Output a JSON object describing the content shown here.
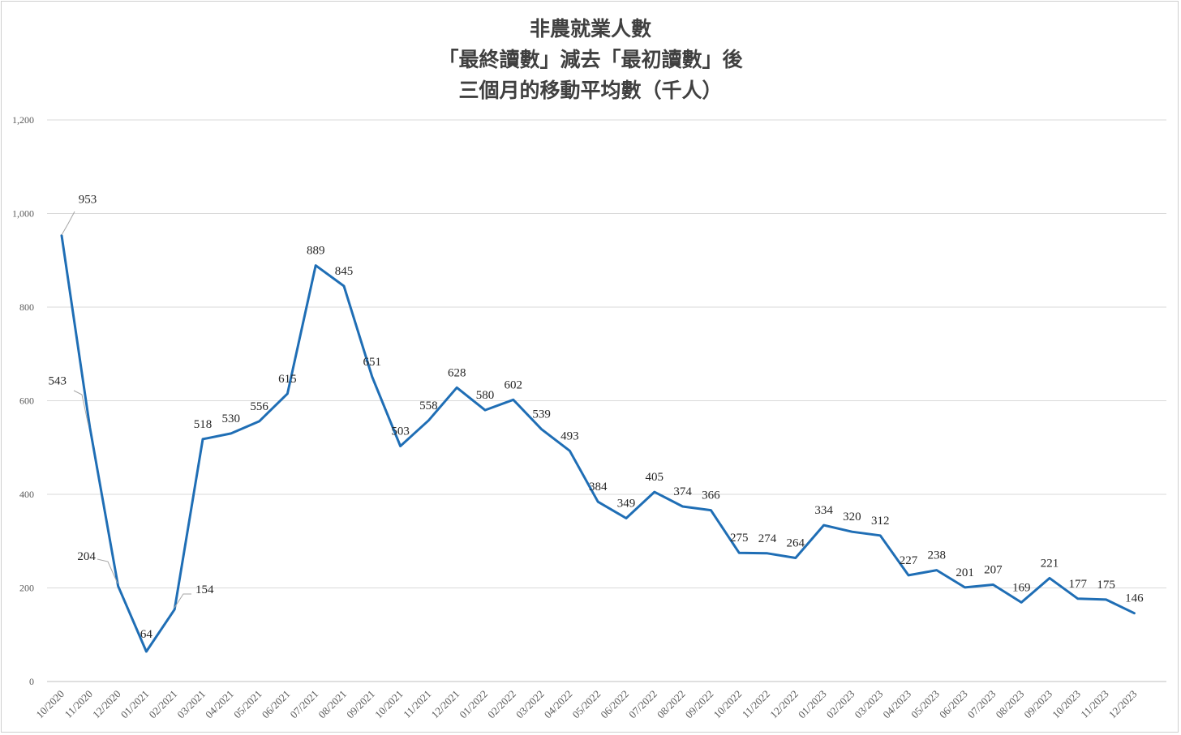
{
  "chart_data": {
    "type": "line",
    "title_lines": [
      "非農就業人數",
      "「最終讀數」減去「最初讀數」後",
      "三個月的移動平均數（千人）"
    ],
    "xlabel": "",
    "ylabel": "",
    "ylim": [
      0,
      1200
    ],
    "yticks": [
      0,
      200,
      400,
      600,
      800,
      1000,
      1200
    ],
    "ytick_labels": [
      "0",
      "200",
      "400",
      "600",
      "800",
      "1,000",
      "1,200"
    ],
    "grid": true,
    "legend": "none",
    "line_color": "#1f6eb5",
    "categories": [
      "10/2020",
      "11/2020",
      "12/2020",
      "01/2021",
      "02/2021",
      "03/2021",
      "04/2021",
      "05/2021",
      "06/2021",
      "07/2021",
      "08/2021",
      "09/2021",
      "10/2021",
      "11/2021",
      "12/2021",
      "01/2022",
      "02/2022",
      "03/2022",
      "04/2022",
      "05/2022",
      "06/2022",
      "07/2022",
      "08/2022",
      "09/2022",
      "10/2022",
      "11/2022",
      "12/2022",
      "01/2023",
      "02/2023",
      "03/2023",
      "04/2023",
      "05/2023",
      "06/2023",
      "07/2023",
      "08/2023",
      "09/2023",
      "10/2023",
      "11/2023",
      "12/2023"
    ],
    "series": [
      {
        "values": [
          953,
          543,
          204,
          64,
          154,
          518,
          530,
          556,
          615,
          889,
          845,
          651,
          503,
          558,
          628,
          580,
          602,
          539,
          493,
          384,
          349,
          405,
          374,
          366,
          275,
          274,
          264,
          334,
          320,
          312,
          227,
          238,
          201,
          207,
          169,
          221,
          177,
          175,
          146
        ],
        "data_labels": [
          "953",
          "543",
          "204",
          "64",
          "154",
          "518",
          "530",
          "556",
          "615",
          "889",
          "845",
          "651",
          "503",
          "558",
          "628",
          "580",
          "602",
          "539",
          "493",
          "384",
          "349",
          "405",
          "374",
          "366",
          "275",
          "274",
          "264",
          "334",
          "320",
          "312",
          "227",
          "238",
          "201",
          "207",
          "169",
          "221",
          "177",
          "175",
          "146"
        ]
      }
    ]
  }
}
